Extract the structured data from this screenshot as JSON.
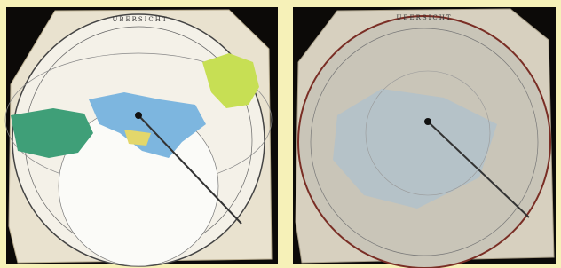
{
  "panels": [
    {
      "title": "UBERSICHT"
    },
    {
      "title": "UBERSICHT"
    }
  ]
}
